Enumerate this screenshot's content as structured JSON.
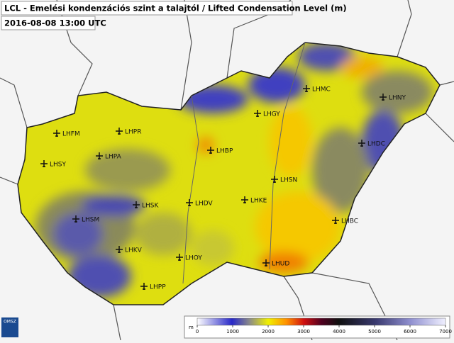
{
  "title": "LCL - Emelési kondenzációs szint a talajtól / Lifted Condensation Level (m)",
  "time": "2016-08-08 13:00 UTC",
  "airports": [
    "LHMC",
    "LHNY",
    "LHGY",
    "LHFM",
    "LHPR",
    "LHBP",
    "LHDC",
    "LHPA",
    "LHSY",
    "LHSN",
    "LHKE",
    "LHSK",
    "LHDV",
    "LHSM",
    "LHBC",
    "LHKV",
    "LHOY",
    "LHUD",
    "LHPP"
  ],
  "legend": {
    "unit": "m",
    "ticks": [
      0,
      1000,
      2000,
      3000,
      4000,
      5000,
      6000,
      7000
    ]
  },
  "logo": "OMSZ"
}
